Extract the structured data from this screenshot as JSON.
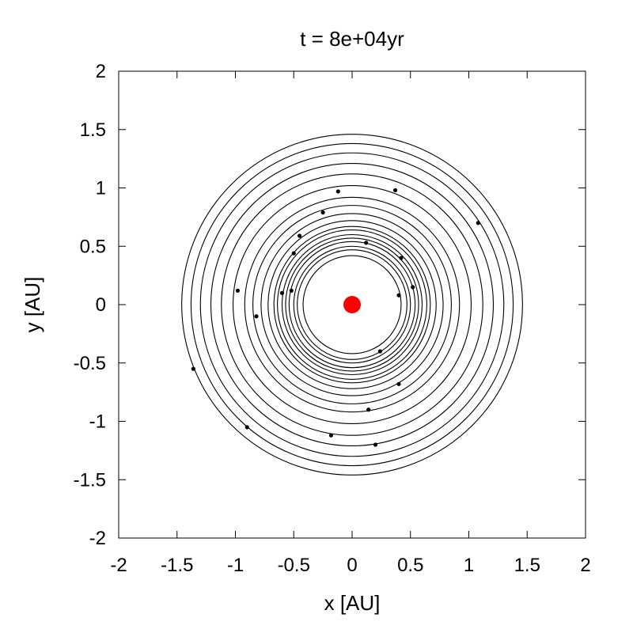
{
  "chart_data": {
    "type": "scatter",
    "title": "t = 8e+04yr",
    "xlabel": "x [AU]",
    "ylabel": "y [AU]",
    "xlim": [
      -2,
      2
    ],
    "ylim": [
      -2,
      2
    ],
    "x_ticks": [
      "-2",
      "-1.5",
      "-1",
      "-0.5",
      "0",
      "0.5",
      "1",
      "1.5",
      "2"
    ],
    "y_ticks": [
      "-2",
      "-1.5",
      "-1",
      "-0.5",
      "0",
      "0.5",
      "1",
      "1.5",
      "2"
    ],
    "grid": false,
    "legend": "none",
    "orbit_radii": [
      0.42,
      0.47,
      0.5,
      0.54,
      0.57,
      0.6,
      0.64,
      0.67,
      0.72,
      0.78,
      0.85,
      0.92,
      1.02,
      1.12,
      1.21,
      1.3,
      1.38,
      1.46
    ],
    "star": {
      "x": 0,
      "y": 0,
      "color": "#ff0000"
    },
    "planets": {
      "color": "#000000",
      "points": [
        {
          "x": 0.4,
          "y": 0.08
        },
        {
          "x": 0.52,
          "y": 0.15
        },
        {
          "x": 0.42,
          "y": 0.4
        },
        {
          "x": 0.12,
          "y": 0.53
        },
        {
          "x": -0.52,
          "y": 0.12
        },
        {
          "x": -0.6,
          "y": 0.1
        },
        {
          "x": -0.82,
          "y": -0.1
        },
        {
          "x": 0.24,
          "y": -0.4
        },
        {
          "x": 0.4,
          "y": -0.68
        },
        {
          "x": 0.14,
          "y": -0.9
        },
        {
          "x": -0.18,
          "y": -1.12
        },
        {
          "x": 0.2,
          "y": -1.2
        },
        {
          "x": -0.9,
          "y": -1.05
        },
        {
          "x": -1.36,
          "y": -0.55
        },
        {
          "x": -0.98,
          "y": 0.12
        },
        {
          "x": -0.5,
          "y": 0.44
        },
        {
          "x": -0.45,
          "y": 0.59
        },
        {
          "x": -0.25,
          "y": 0.79
        },
        {
          "x": -0.12,
          "y": 0.97
        },
        {
          "x": 0.37,
          "y": 0.98
        },
        {
          "x": 1.08,
          "y": 0.7
        }
      ]
    }
  }
}
